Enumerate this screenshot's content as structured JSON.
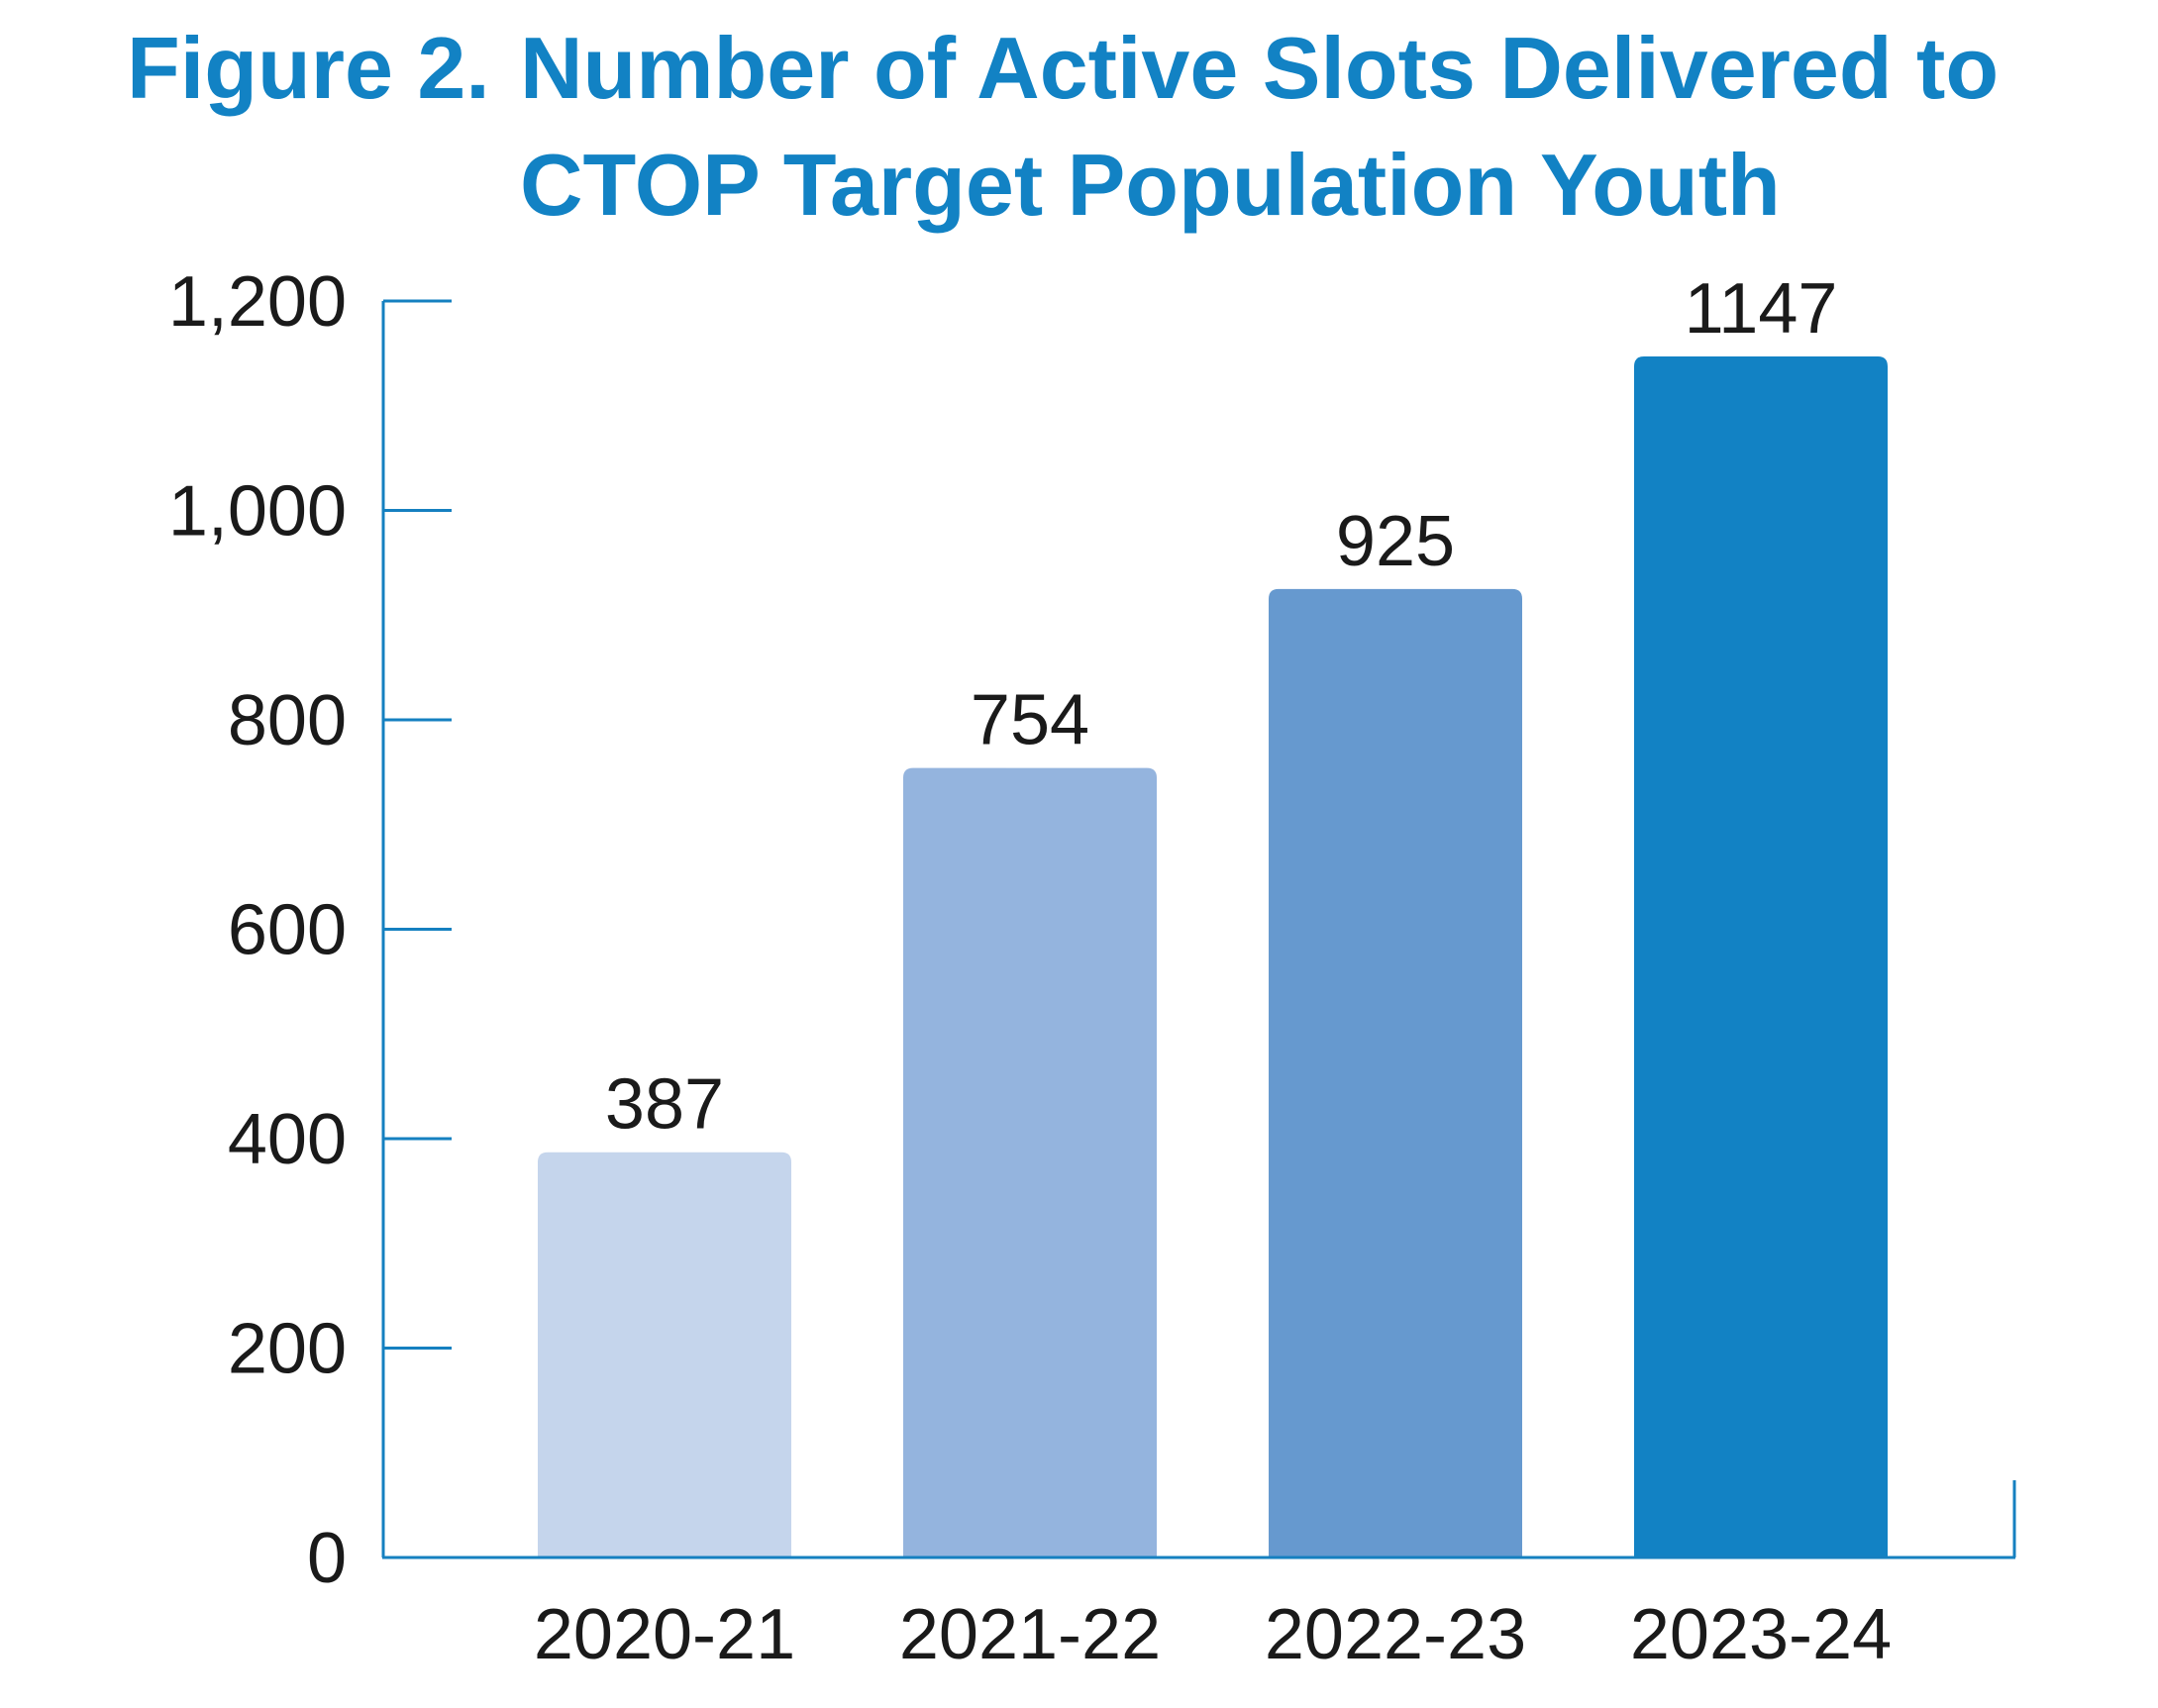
{
  "figure_label": "Figure 2.",
  "chart_title": "Number of Active Slots Delivered to CTOP Target Population Youth",
  "colors": {
    "title": "#1282c4",
    "axis": "#1580c0",
    "text": "#1a1a1a",
    "bars": [
      "#c5d5ec",
      "#94b4de",
      "#6699cf",
      "#1282c4"
    ]
  },
  "chart_data": {
    "type": "bar",
    "title": "Number of Active Slots Delivered to CTOP Target Population Youth",
    "categories": [
      "2020-21",
      "2021-22",
      "2022-23",
      "2023-24"
    ],
    "values": [
      387,
      754,
      925,
      1147
    ],
    "value_labels": [
      "387",
      "754",
      "925",
      "1147"
    ],
    "xlabel": "",
    "ylabel": "",
    "ylim": [
      0,
      1200
    ],
    "yticks": [
      0,
      200,
      400,
      600,
      800,
      1000,
      1200
    ],
    "ytick_labels": [
      "0",
      "200",
      "400",
      "600",
      "800",
      "1,000",
      "1,200"
    ],
    "grid": false,
    "legend": "none"
  }
}
